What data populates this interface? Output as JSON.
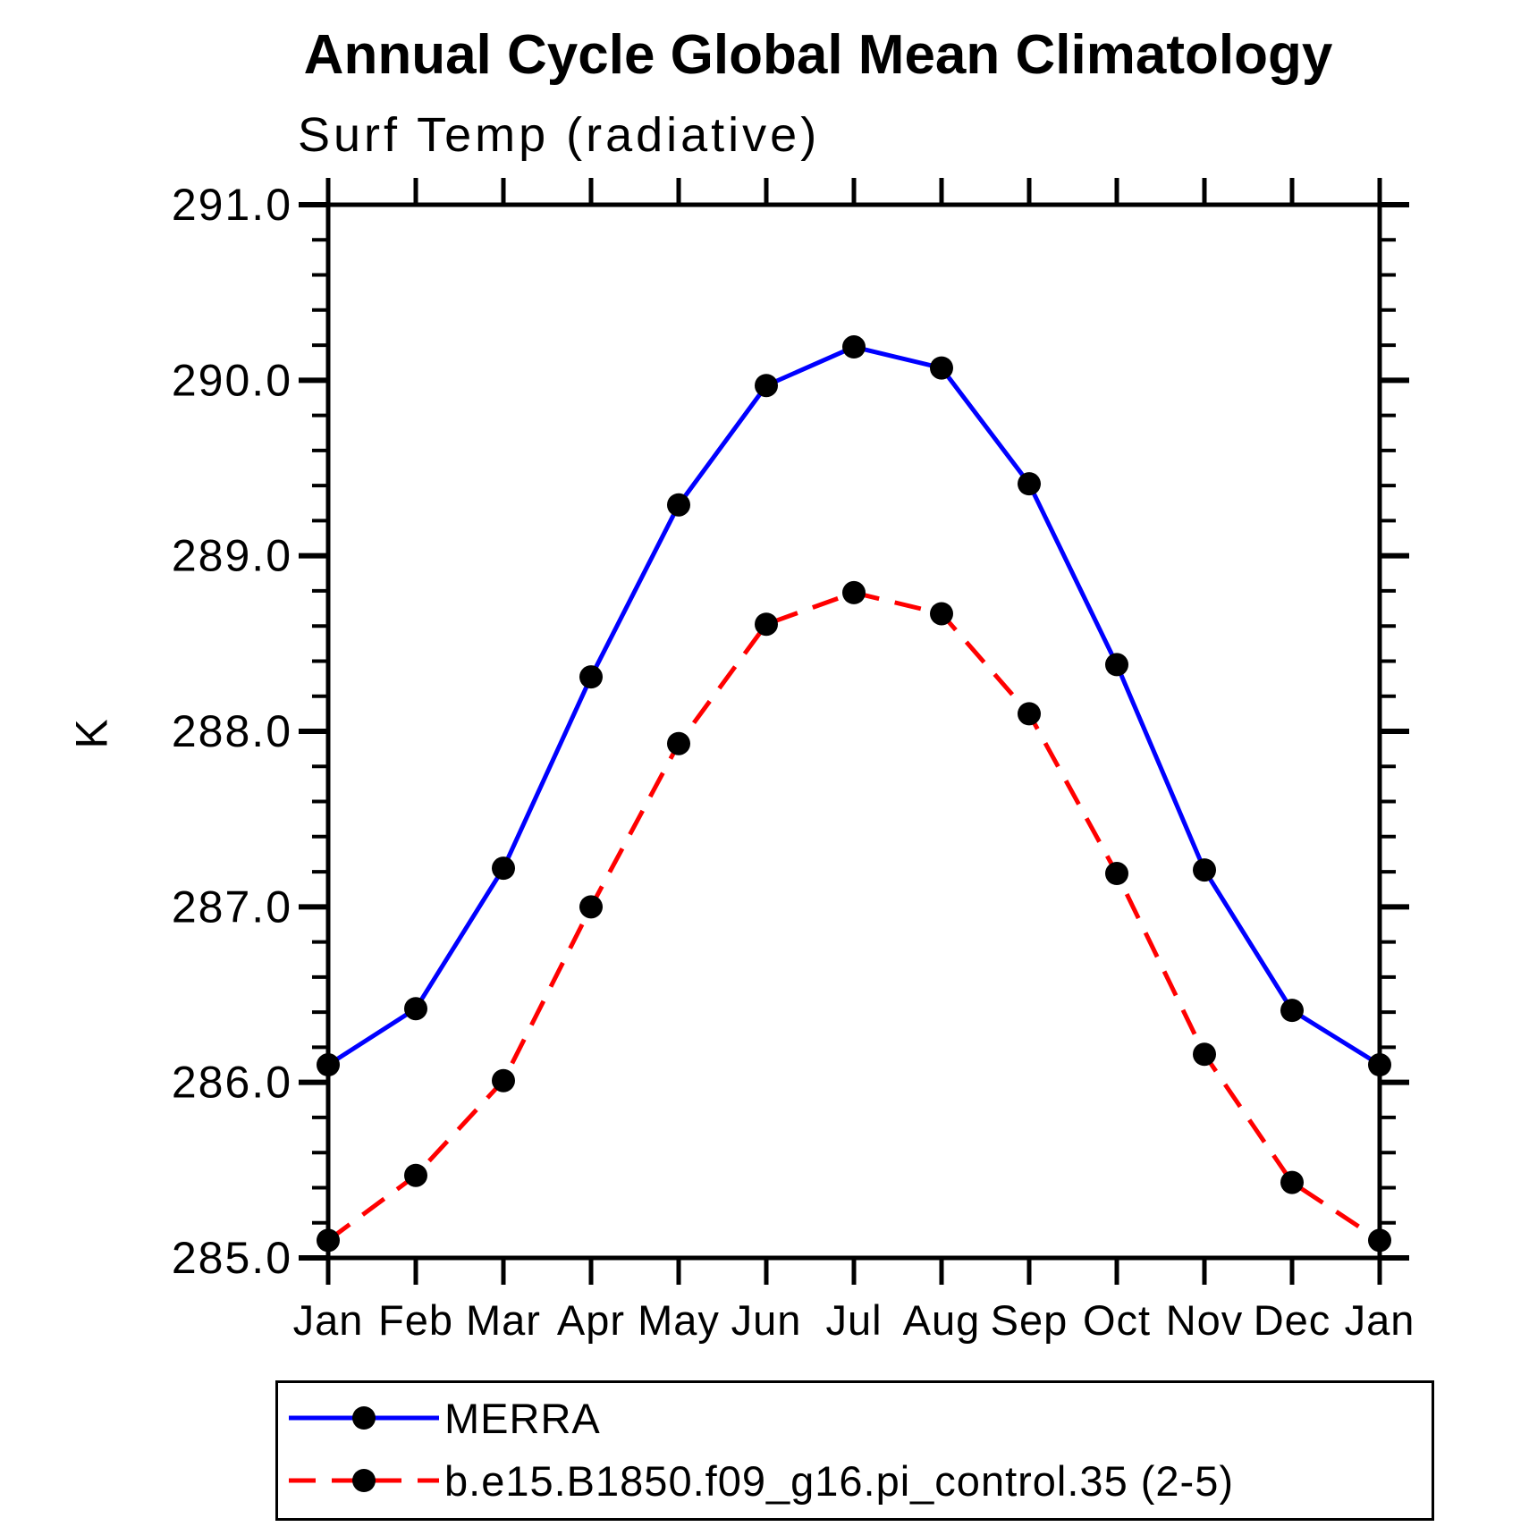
{
  "accent_colors": {
    "series1": "#0000ff",
    "series2": "#ff0000",
    "marker": "#000000",
    "axis": "#000000",
    "background": "#ffffff"
  },
  "chart_data": {
    "type": "line",
    "title": "Annual Cycle Global Mean Climatology",
    "subtitle": "Surf Temp (radiative)",
    "xlabel": "",
    "ylabel": "K",
    "x_categories": [
      "Jan",
      "Feb",
      "Mar",
      "Apr",
      "May",
      "Jun",
      "Jul",
      "Aug",
      "Sep",
      "Oct",
      "Nov",
      "Dec",
      "Jan"
    ],
    "ylim": [
      285.0,
      291.0
    ],
    "ytick_major_interval": 1.0,
    "ytick_minor_interval": 0.2,
    "ytick_labels": [
      "285.0",
      "286.0",
      "287.0",
      "288.0",
      "289.0",
      "290.0",
      "291.0"
    ],
    "grid": false,
    "legend_position": "bottom-box",
    "series": [
      {
        "name": "MERRA",
        "color": "#0000ff",
        "line_style": "solid",
        "marker": "filled-circle",
        "marker_color": "#000000",
        "values": [
          286.1,
          286.42,
          287.22,
          288.31,
          289.29,
          289.97,
          290.19,
          290.07,
          289.41,
          288.38,
          287.21,
          286.41,
          286.1
        ]
      },
      {
        "name": "b.e15.B1850.f09_g16.pi_control.35 (2-5)",
        "color": "#ff0000",
        "line_style": "dashed",
        "marker": "filled-circle",
        "marker_color": "#000000",
        "values": [
          285.1,
          285.47,
          286.01,
          287.0,
          287.93,
          288.61,
          288.79,
          288.67,
          288.1,
          287.19,
          286.16,
          285.43,
          285.1
        ]
      }
    ]
  }
}
